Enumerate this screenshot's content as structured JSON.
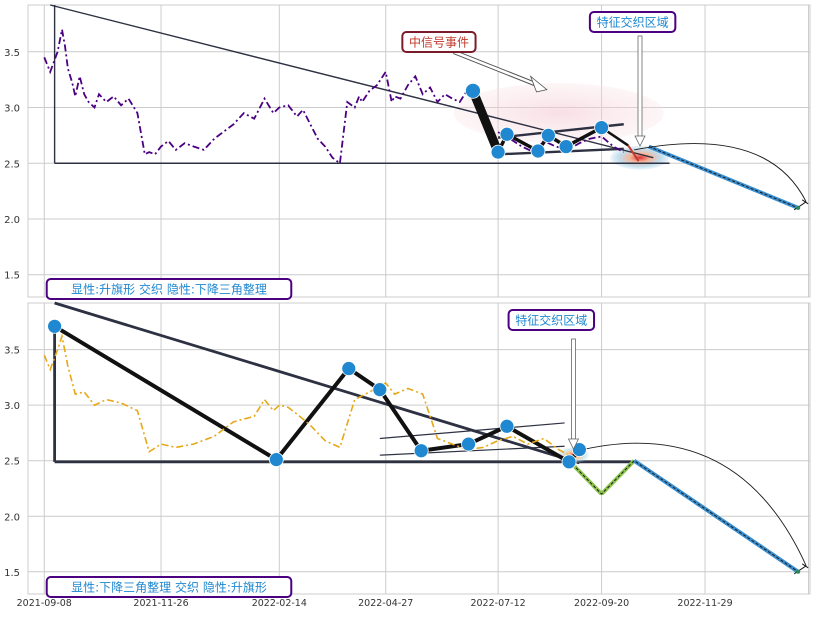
{
  "chart_data": [
    {
      "type": "line",
      "panel": "top",
      "xlim": [
        "2021-08-28",
        "2023-02-08"
      ],
      "ylim": [
        1.3,
        3.92
      ],
      "y_ticks": [
        1.5,
        2.0,
        2.5,
        3.0,
        3.5
      ],
      "y_tick_labels": [
        "1.5",
        "2.0",
        "2.5",
        "3.0",
        "3.5"
      ],
      "x_grid_dates": [
        "2021-09-08",
        "2021-11-26",
        "2022-02-14",
        "2022-04-27",
        "2022-07-12",
        "2022-09-20",
        "2022-11-29",
        "2023-02-07"
      ],
      "grid": true,
      "series": [
        {
          "color": "#4b0082",
          "style": "dashdot",
          "x": [
            "2021-09-08",
            "2021-09-12",
            "2021-09-17",
            "2021-09-20",
            "2021-09-22",
            "2021-09-24",
            "2021-09-27",
            "2021-09-29",
            "2021-10-02",
            "2021-10-05",
            "2021-10-08",
            "2021-10-12",
            "2021-10-15",
            "2021-10-20",
            "2021-10-25",
            "2021-10-30",
            "2021-11-04",
            "2021-11-10",
            "2021-11-15",
            "2021-11-18",
            "2021-11-22",
            "2021-11-26",
            "2021-12-01",
            "2021-12-06",
            "2021-12-12",
            "2021-12-18",
            "2021-12-25",
            "2022-01-01",
            "2022-01-07",
            "2022-01-14",
            "2022-01-21",
            "2022-01-28",
            "2022-02-04",
            "2022-02-10",
            "2022-02-14",
            "2022-02-20",
            "2022-02-26",
            "2022-03-02",
            "2022-03-07",
            "2022-03-12",
            "2022-03-17",
            "2022-03-22",
            "2022-03-27",
            "2022-04-01",
            "2022-04-06",
            "2022-04-09",
            "2022-04-11",
            "2022-04-16",
            "2022-04-21",
            "2022-04-27",
            "2022-05-01",
            "2022-05-03",
            "2022-05-07",
            "2022-05-12",
            "2022-05-17",
            "2022-05-22",
            "2022-05-27",
            "2022-06-01",
            "2022-06-06",
            "2022-06-11",
            "2022-06-16",
            "2022-06-21",
            "2022-06-25"
          ],
          "y": [
            3.45,
            3.32,
            3.5,
            3.7,
            3.55,
            3.35,
            3.22,
            3.1,
            3.28,
            3.12,
            3.05,
            3.0,
            3.12,
            3.05,
            3.1,
            3.02,
            3.08,
            2.95,
            2.58,
            2.6,
            2.58,
            2.65,
            2.7,
            2.62,
            2.68,
            2.65,
            2.62,
            2.72,
            2.78,
            2.85,
            2.95,
            2.9,
            3.08,
            2.95,
            3.0,
            3.02,
            2.92,
            2.98,
            2.85,
            2.72,
            2.65,
            2.55,
            2.5,
            3.05,
            3.0,
            3.1,
            3.05,
            3.15,
            3.2,
            3.32,
            3.05,
            3.1,
            3.08,
            3.2,
            3.28,
            3.12,
            3.18,
            3.05,
            3.12,
            3.08,
            3.05,
            3.15,
            3.15
          ]
        },
        {
          "color": "#4b0082",
          "style": "dashdot",
          "x": [
            "2022-07-12",
            "2022-07-20",
            "2022-07-28",
            "2022-08-05",
            "2022-08-12",
            "2022-08-20",
            "2022-08-28",
            "2022-09-05",
            "2022-09-12",
            "2022-09-20",
            "2022-09-28",
            "2022-10-05"
          ],
          "y": [
            2.78,
            2.72,
            2.65,
            2.6,
            2.7,
            2.65,
            2.62,
            2.68,
            2.72,
            2.74,
            2.65,
            2.6
          ]
        }
      ],
      "pattern_points": {
        "dates": [
          "2022-06-25",
          "2022-07-12",
          "2022-07-18",
          "2022-08-08",
          "2022-08-15",
          "2022-08-27",
          "2022-09-20"
        ],
        "values": [
          3.15,
          2.6,
          2.76,
          2.61,
          2.75,
          2.65,
          2.82
        ]
      },
      "annotations": [
        {
          "text": "中信号事件"
        },
        {
          "text": "特征交织区域"
        },
        {
          "text": "显性:升旗形 交织 隐性:下降三角整理"
        }
      ],
      "projection": {
        "start": [
          "2022-10-22",
          2.65
        ],
        "end": [
          "2023-01-31",
          2.1
        ]
      }
    },
    {
      "type": "line",
      "panel": "bottom",
      "xlim": [
        "2021-08-28",
        "2023-02-08"
      ],
      "ylim": [
        1.3,
        3.92
      ],
      "y_ticks": [
        1.5,
        2.0,
        2.5,
        3.0,
        3.5
      ],
      "y_tick_labels": [
        "1.5",
        "2.0",
        "2.5",
        "3.0",
        "3.5"
      ],
      "x_tick_dates": [
        "2021-09-08",
        "2021-11-26",
        "2022-02-14",
        "2022-04-27",
        "2022-07-12",
        "2022-09-20",
        "2022-11-29"
      ],
      "x_tick_labels": [
        "2021-09-08",
        "2021-11-26",
        "2022-02-14",
        "2022-04-27",
        "2022-07-12",
        "2022-09-20",
        "2022-11-29"
      ],
      "grid": true,
      "series": [
        {
          "color": "#e6a817",
          "style": "dashdot",
          "x": [
            "2021-09-08",
            "2021-09-12",
            "2021-09-17",
            "2021-09-20",
            "2021-09-24",
            "2021-09-29",
            "2021-10-05",
            "2021-10-12",
            "2021-10-20",
            "2021-10-30",
            "2021-11-10",
            "2021-11-18",
            "2021-11-26",
            "2021-12-06",
            "2021-12-18",
            "2022-01-01",
            "2022-01-14",
            "2022-01-28",
            "2022-02-04",
            "2022-02-10",
            "2022-02-14",
            "2022-02-20",
            "2022-02-26",
            "2022-03-07",
            "2022-03-17",
            "2022-03-27",
            "2022-04-06",
            "2022-04-16",
            "2022-04-27",
            "2022-05-03",
            "2022-05-12",
            "2022-05-22",
            "2022-06-01",
            "2022-06-11",
            "2022-06-21",
            "2022-07-02",
            "2022-07-12",
            "2022-07-22",
            "2022-08-01",
            "2022-08-12",
            "2022-08-22",
            "2022-08-29"
          ],
          "y": [
            3.45,
            3.32,
            3.5,
            3.62,
            3.35,
            3.1,
            3.12,
            3.0,
            3.05,
            3.02,
            2.95,
            2.58,
            2.65,
            2.62,
            2.65,
            2.72,
            2.85,
            2.9,
            3.05,
            2.95,
            3.0,
            2.98,
            2.92,
            2.82,
            2.68,
            2.62,
            3.05,
            3.12,
            3.2,
            3.1,
            3.15,
            3.1,
            2.7,
            2.65,
            2.6,
            2.62,
            2.68,
            2.72,
            2.65,
            2.7,
            2.6,
            2.55
          ]
        }
      ],
      "pattern_points": {
        "dates": [
          "2021-09-15",
          "2022-02-12",
          "2022-04-02",
          "2022-04-23",
          "2022-05-21",
          "2022-06-22",
          "2022-07-18",
          "2022-08-29",
          "2022-09-05"
        ],
        "values": [
          3.71,
          2.51,
          3.33,
          3.14,
          2.59,
          2.65,
          2.81,
          2.49,
          2.6
        ]
      },
      "annotations": [
        {
          "text": "特征交织区域"
        },
        {
          "text": "显性:下降三角整理 交织 隐性:升旗形"
        }
      ],
      "projection": {
        "points": [
          [
            "2022-08-29",
            2.5
          ],
          [
            "2022-09-20",
            2.2
          ],
          [
            "2022-10-12",
            2.5
          ],
          [
            "2023-01-31",
            1.5
          ]
        ]
      }
    }
  ],
  "colors": {
    "purple_series": "#4b0082",
    "orange_series": "#e6a817",
    "marker_blue": "#1f88d0",
    "label_text": "#1f88d0",
    "label_border": "#4b0082",
    "signal_text": "#c0392b",
    "signal_border": "#7b1c2c",
    "axis_line": "#2d3142",
    "grid": "#cccccc",
    "projection_blue": "#3a8fd0",
    "projection_green": "#8bc34a"
  }
}
